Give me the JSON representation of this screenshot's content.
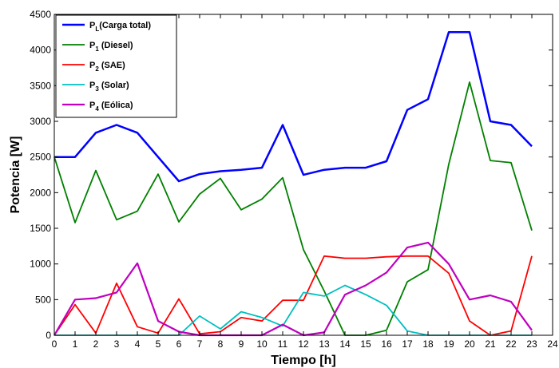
{
  "chart_data": {
    "type": "line",
    "title": "",
    "xlabel": "Tiempo [h]",
    "ylabel": "Potencia [W]",
    "xlim": [
      0,
      24
    ],
    "ylim": [
      0,
      4500
    ],
    "xticks": [
      0,
      1,
      2,
      3,
      4,
      5,
      6,
      7,
      8,
      9,
      10,
      11,
      12,
      13,
      14,
      15,
      16,
      17,
      18,
      19,
      20,
      21,
      22,
      23,
      24
    ],
    "yticks": [
      0,
      500,
      1000,
      1500,
      2000,
      2500,
      3000,
      3500,
      4000,
      4500
    ],
    "grid": false,
    "legend_position": "top-left",
    "x": [
      0,
      1,
      2,
      3,
      4,
      5,
      6,
      7,
      8,
      9,
      10,
      11,
      12,
      13,
      14,
      15,
      16,
      17,
      18,
      19,
      20,
      21,
      22,
      23
    ],
    "series": [
      {
        "name": "P_L(Carga total)",
        "label_main": "P",
        "label_sub": "L",
        "label_rest": "(Carga total)",
        "color": "#0000ff",
        "width": 2.5,
        "values": [
          2500,
          2500,
          2840,
          2950,
          2840,
          2500,
          2160,
          2260,
          2300,
          2320,
          2350,
          2950,
          2250,
          2320,
          2350,
          2350,
          2440,
          3160,
          3310,
          4250,
          4250,
          3000,
          2950,
          2650
        ]
      },
      {
        "name": "P_1 (Diesel)",
        "label_main": "P",
        "label_sub": "1",
        "label_rest": " (Diesel)",
        "color": "#008000",
        "width": 1.8,
        "values": [
          2500,
          1580,
          2310,
          1620,
          1740,
          2260,
          1590,
          1980,
          2200,
          1760,
          1910,
          2210,
          1200,
          620,
          0,
          0,
          70,
          750,
          920,
          2400,
          3550,
          2450,
          2420,
          1470
        ]
      },
      {
        "name": "P_2 (SAE)",
        "label_main": "P",
        "label_sub": "2",
        "label_rest": "  (SAE)",
        "color": "#ff0000",
        "width": 1.8,
        "values": [
          0,
          430,
          30,
          730,
          120,
          30,
          510,
          20,
          50,
          250,
          200,
          490,
          490,
          1110,
          1080,
          1080,
          1100,
          1110,
          1110,
          870,
          200,
          0,
          60,
          1110
        ]
      },
      {
        "name": "P_3 (Solar)",
        "label_main": "P",
        "label_sub": "3",
        "label_rest": " (Solar)",
        "color": "#00bfbf",
        "width": 1.8,
        "values": [
          0,
          0,
          0,
          0,
          0,
          0,
          0,
          270,
          90,
          330,
          250,
          130,
          600,
          550,
          700,
          570,
          420,
          60,
          0,
          0,
          0,
          0,
          0,
          0
        ]
      },
      {
        "name": "P_4 (Eólica)",
        "label_main": "P",
        "label_sub": "4",
        "label_rest": " (Eólica)",
        "color": "#bf00bf",
        "width": 2.2,
        "values": [
          0,
          500,
          520,
          600,
          1010,
          200,
          50,
          0,
          0,
          0,
          0,
          150,
          0,
          40,
          570,
          700,
          880,
          1230,
          1300,
          1000,
          500,
          560,
          470,
          70
        ]
      }
    ]
  }
}
